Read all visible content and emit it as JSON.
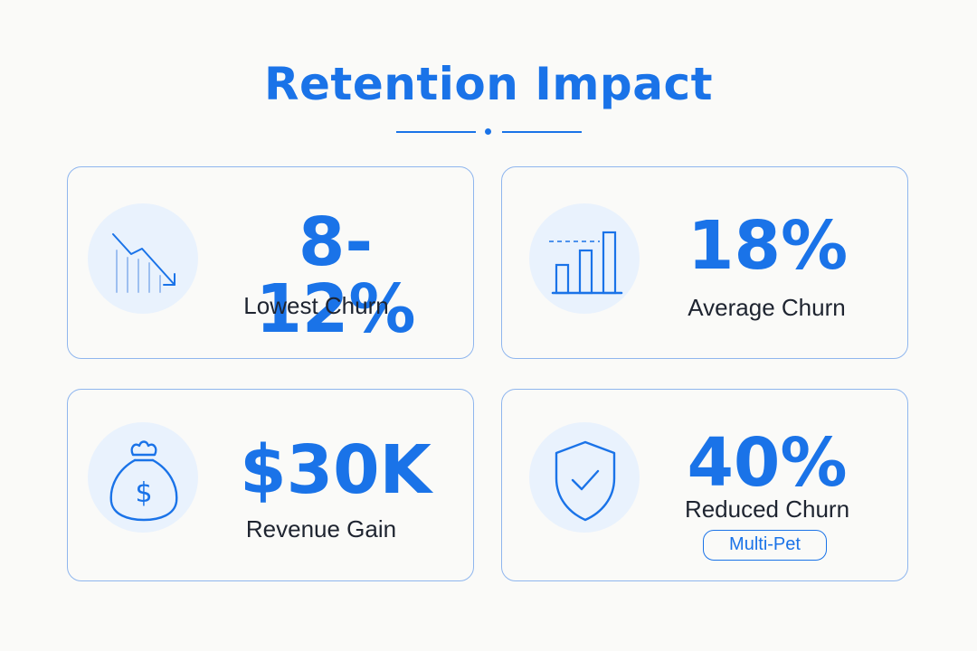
{
  "title": "Retention Impact",
  "accent_color": "#1a73e8",
  "cards": [
    {
      "value": "8-12%",
      "label": "Lowest Churn",
      "icon": "trend-down-icon"
    },
    {
      "value": "18%",
      "label": "Average Churn",
      "icon": "bar-chart-icon"
    },
    {
      "value": "$30K",
      "label": "Revenue Gain",
      "icon": "money-bag-icon"
    },
    {
      "value": "40%",
      "label": "Reduced Churn",
      "icon": "shield-check-icon",
      "badge": "Multi-Pet"
    }
  ]
}
